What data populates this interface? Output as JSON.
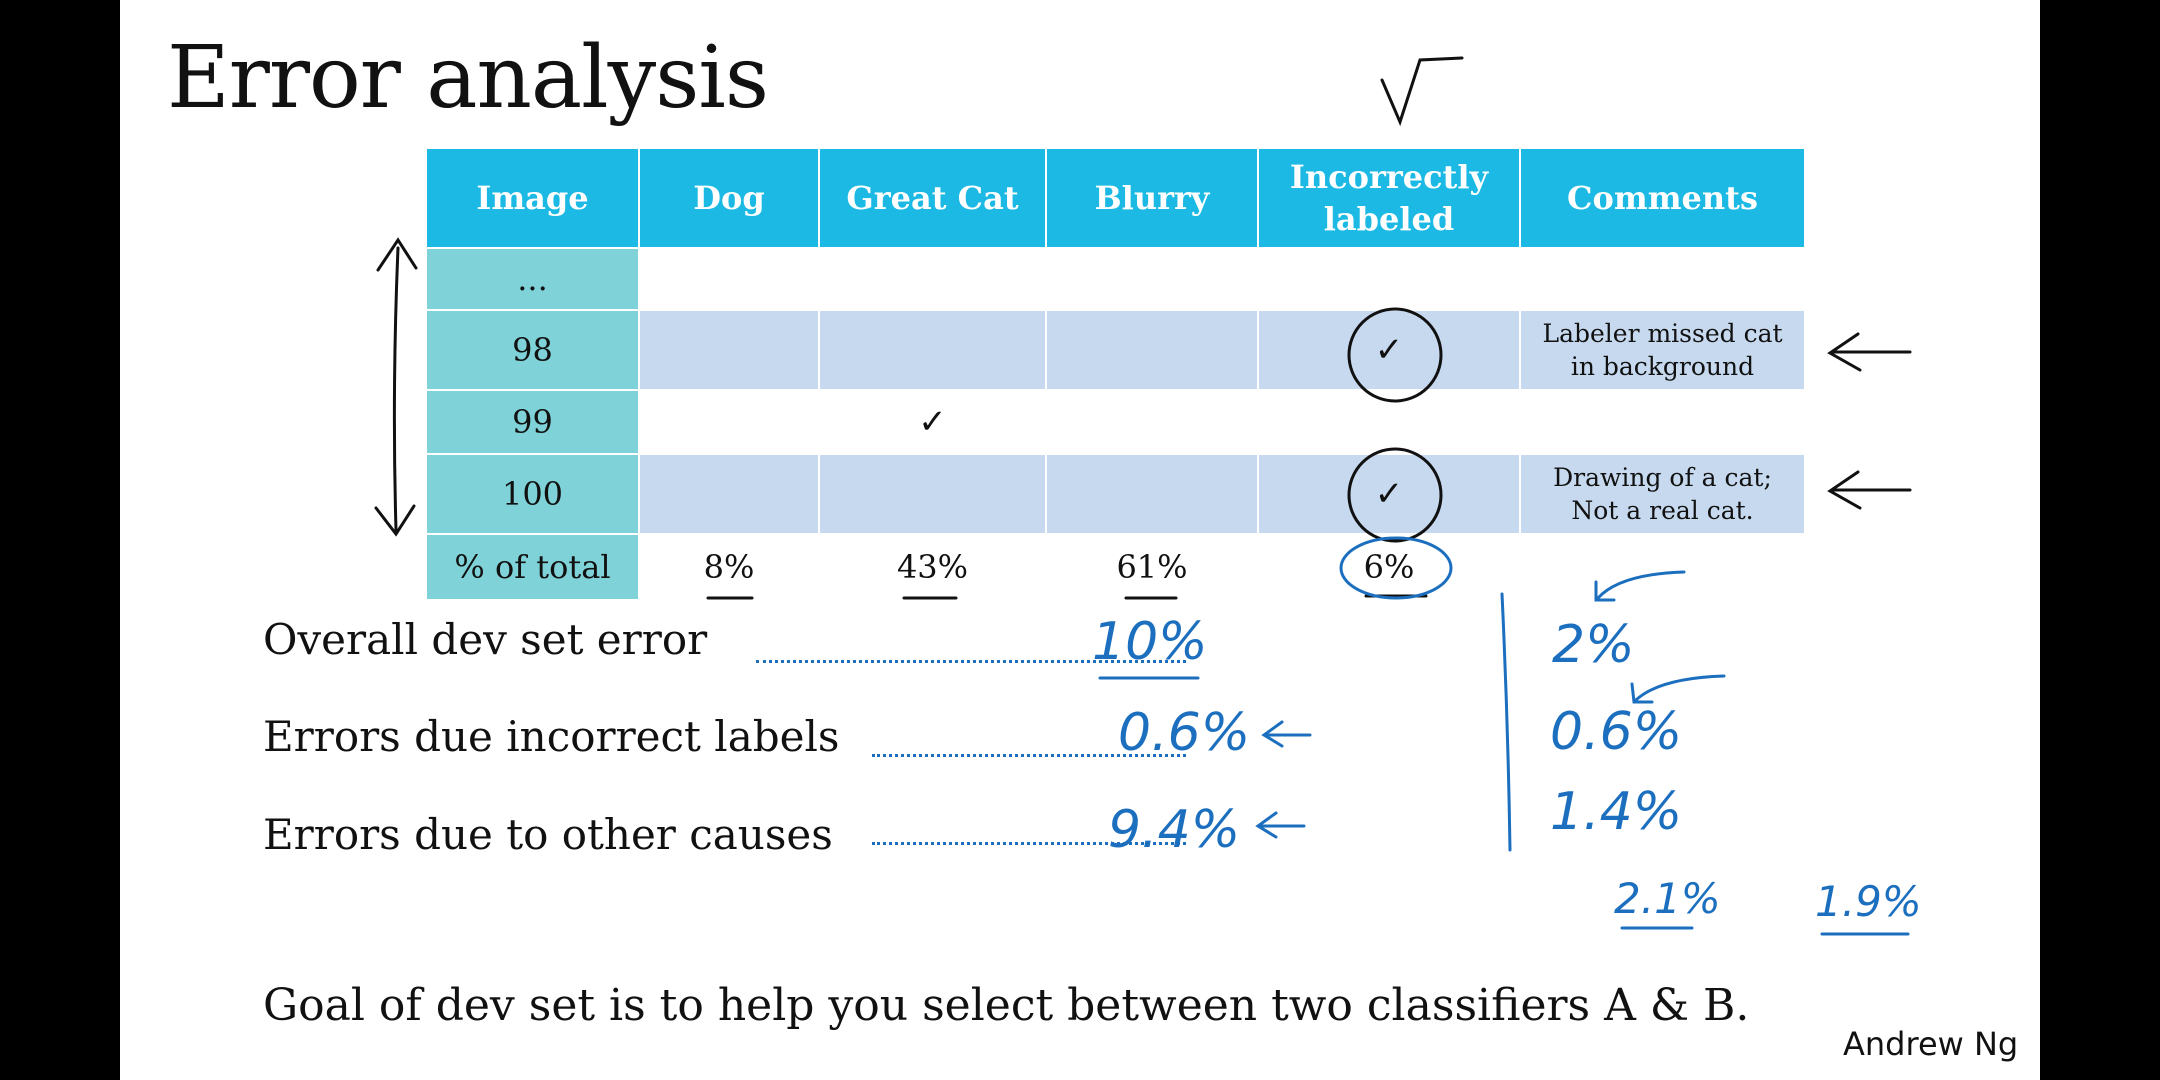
{
  "title": "Error analysis",
  "table": {
    "headers": [
      "Image",
      "Dog",
      "Great Cat",
      "Blurry",
      "Incorrectly labeled",
      "Comments"
    ],
    "rows": [
      {
        "image": "...",
        "cells": [
          "",
          "",
          "",
          "",
          ""
        ]
      },
      {
        "image": "98",
        "cells": [
          "",
          "",
          "",
          "✓",
          "Labeler missed cat in background"
        ]
      },
      {
        "image": "99",
        "cells": [
          "",
          "✓",
          "",
          "",
          ""
        ]
      },
      {
        "image": "100",
        "cells": [
          "",
          "",
          "",
          "✓",
          "Drawing of a cat; Not a real cat."
        ]
      }
    ],
    "footer": {
      "label": "% of total",
      "values": [
        "8%",
        "43%",
        "61%",
        "6%",
        ""
      ]
    }
  },
  "lines": {
    "overall": "Overall dev set error",
    "incorrect": "Errors due incorrect labels",
    "other": "Errors due to other causes"
  },
  "handwritten": {
    "overall_val": "10%",
    "incorrect_val": "0.6%",
    "other_val": "9.4%",
    "overall_val2": "2%",
    "incorrect_val2": "0.6%",
    "other_val2": "1.4%",
    "classifier_a": "2.1%",
    "classifier_b": "1.9%"
  },
  "goal": "Goal of dev set is to help you select between two classifiers A & B.",
  "author": "Andrew Ng",
  "colors": {
    "header": "#1bb9e4",
    "image_col": "#7fd3d8",
    "row_blue": "#c6d9ee",
    "ink": "#1c6fbe"
  }
}
